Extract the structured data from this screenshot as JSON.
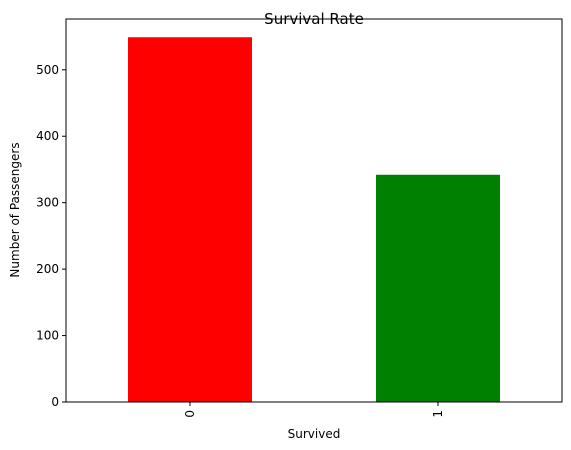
{
  "chart_data": {
    "type": "bar",
    "title": "Survival Rate",
    "xlabel": "Survived",
    "ylabel": "Number of Passengers",
    "categories": [
      "0",
      "1"
    ],
    "values": [
      549,
      342
    ],
    "bar_colors": [
      "#ff0000",
      "#008000"
    ],
    "ylim": [
      0,
      576.45
    ],
    "yticks": [
      0,
      100,
      200,
      300,
      400,
      500
    ],
    "xtick_rotation": 90,
    "grid": false,
    "legend": "none"
  }
}
